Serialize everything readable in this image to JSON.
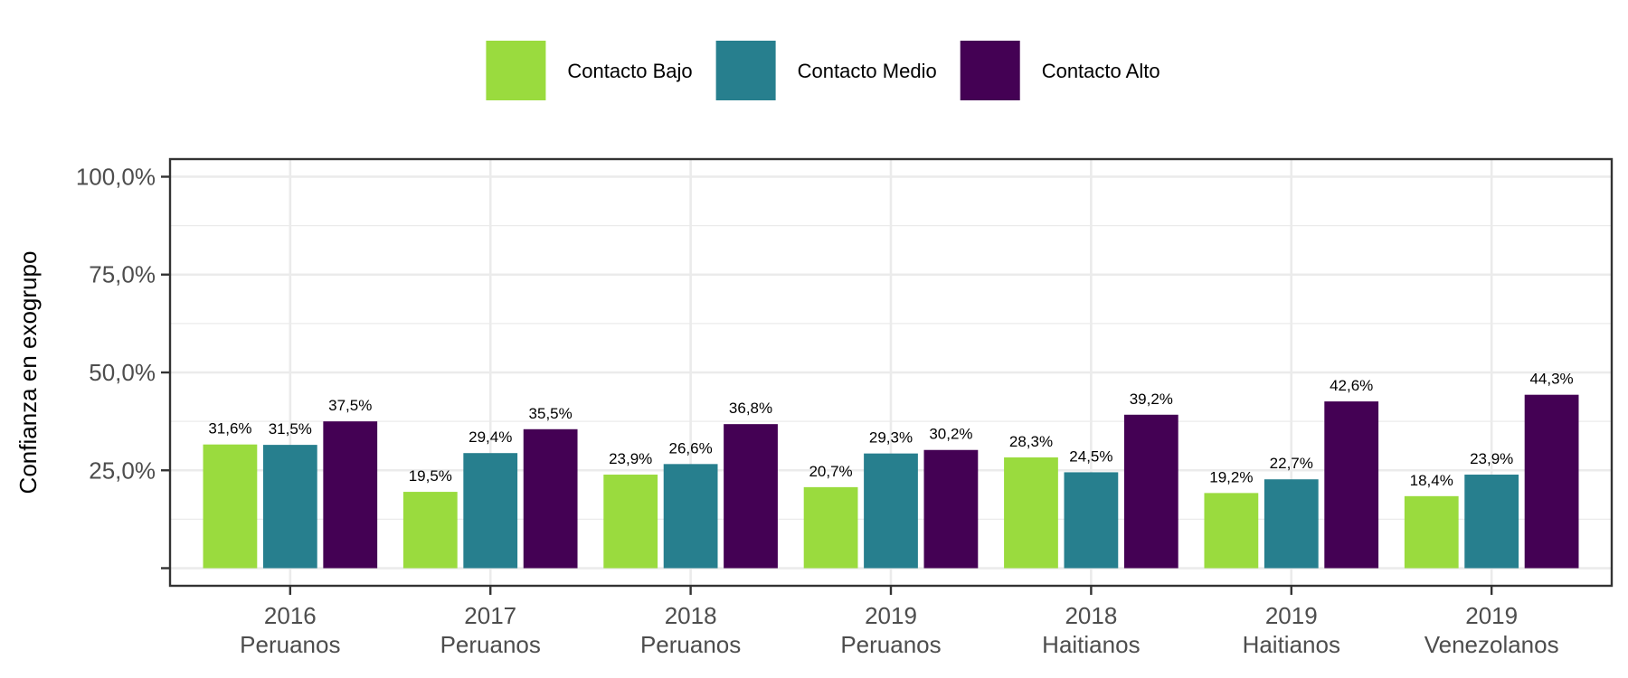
{
  "chart_data": {
    "type": "bar",
    "categories": [
      [
        "2016",
        "Peruanos"
      ],
      [
        "2017",
        "Peruanos"
      ],
      [
        "2018",
        "Peruanos"
      ],
      [
        "2019",
        "Peruanos"
      ],
      [
        "2018",
        "Haitianos"
      ],
      [
        "2019",
        "Haitianos"
      ],
      [
        "2019",
        "Venezolanos"
      ]
    ],
    "series": [
      {
        "name": "Contacto Bajo",
        "color": "#9ADB3E",
        "values": [
          31.6,
          19.5,
          23.9,
          20.7,
          28.3,
          19.2,
          18.4
        ],
        "labels": [
          "31,6%",
          "19,5%",
          "23,9%",
          "20,7%",
          "28,3%",
          "19,2%",
          "18,4%"
        ]
      },
      {
        "name": "Contacto Medio",
        "color": "#277F8E",
        "values": [
          31.5,
          29.4,
          26.6,
          29.3,
          24.5,
          22.7,
          23.9
        ],
        "labels": [
          "31,5%",
          "29,4%",
          "26,6%",
          "29,3%",
          "24,5%",
          "22,7%",
          "23,9%"
        ]
      },
      {
        "name": "Contacto Alto",
        "color": "#440154",
        "values": [
          37.5,
          35.5,
          36.8,
          30.2,
          39.2,
          42.6,
          44.3
        ],
        "labels": [
          "37,5%",
          "35,5%",
          "36,8%",
          "30,2%",
          "39,2%",
          "42,6%",
          "44,3%"
        ]
      }
    ],
    "ylabel": "Confianza en exogrupo",
    "yticks": [
      {
        "value": 25,
        "label": "25,0%"
      },
      {
        "value": 50,
        "label": "50,0%"
      },
      {
        "value": 75,
        "label": "75,0%"
      },
      {
        "value": 100,
        "label": "100,0%"
      }
    ],
    "ylim": [
      0,
      100
    ],
    "legend_position": "top",
    "grid": true
  }
}
